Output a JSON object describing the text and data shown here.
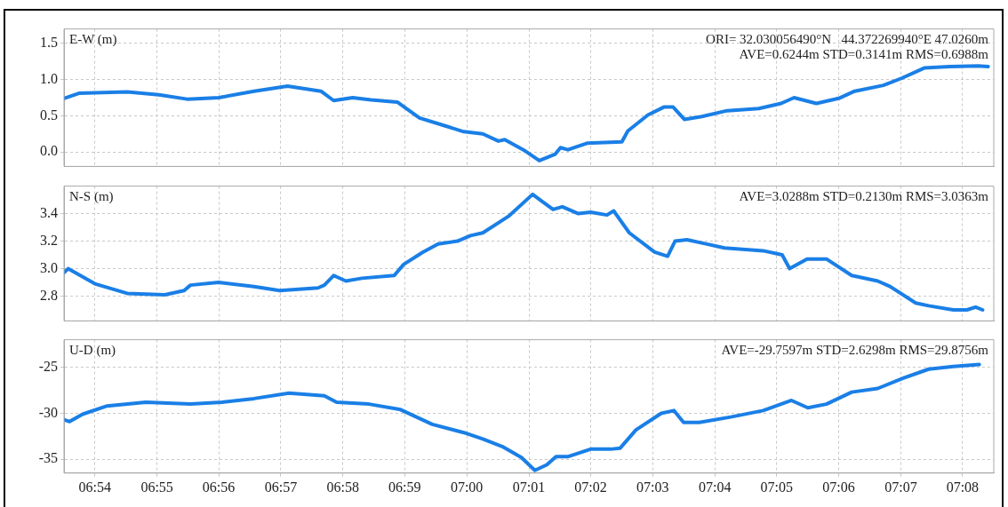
{
  "chart_data": [
    {
      "type": "line",
      "ylabel": "E-W (m)",
      "annotations": [
        "ORI= 32.030056490°N   44.372269940°E 47.0260m",
        "AVE=0.6244m STD=0.3141m RMS=0.6988m"
      ],
      "x": [
        6.8917,
        6.8957,
        6.9087,
        6.9172,
        6.9248,
        6.9333,
        6.9428,
        6.9518,
        6.9608,
        6.9642,
        6.9693,
        6.9743,
        6.9813,
        6.9873,
        6.9942,
        6.9992,
        7.0043,
        7.0085,
        7.0102,
        7.0152,
        7.0195,
        7.0238,
        7.0252,
        7.0272,
        7.0323,
        7.0417,
        7.0433,
        7.0487,
        7.053,
        7.0555,
        7.0585,
        7.0632,
        7.07,
        7.0785,
        7.0845,
        7.088,
        7.094,
        7.1,
        7.1043,
        7.112,
        7.117,
        7.123,
        7.1298,
        7.1375,
        7.1402
      ],
      "series": [
        {
          "color": "#1a7fe6",
          "values": [
            0.74,
            0.81,
            0.83,
            0.79,
            0.73,
            0.75,
            0.84,
            0.91,
            0.84,
            0.71,
            0.75,
            0.72,
            0.69,
            0.47,
            0.36,
            0.28,
            0.25,
            0.15,
            0.17,
            0.03,
            -0.12,
            -0.03,
            0.06,
            0.03,
            0.12,
            0.14,
            0.29,
            0.51,
            0.62,
            0.62,
            0.45,
            0.49,
            0.57,
            0.6,
            0.67,
            0.75,
            0.67,
            0.74,
            0.84,
            0.92,
            1.02,
            1.16,
            1.18,
            1.19,
            1.18
          ]
        }
      ],
      "xlim": [
        6.8917,
        7.1417
      ],
      "ylim": [
        -0.2,
        1.7
      ],
      "yticks": [
        {
          "value": 0,
          "label": "0.0"
        },
        0.5,
        {
          "value": 1,
          "label": "1.0"
        },
        1.5
      ],
      "xticks": [
        {
          "value": 6.9,
          "label": null
        },
        {
          "value": 6.9167,
          "label": null
        },
        {
          "value": 6.9333,
          "label": null
        },
        {
          "value": 6.95,
          "label": null
        },
        {
          "value": 6.9667,
          "label": null
        },
        {
          "value": 6.9833,
          "label": null
        },
        {
          "value": 7.0,
          "label": null
        },
        {
          "value": 7.0167,
          "label": null
        },
        {
          "value": 7.0333,
          "label": null
        },
        {
          "value": 7.05,
          "label": null
        },
        {
          "value": 7.0667,
          "label": null
        },
        {
          "value": 7.0833,
          "label": null
        },
        {
          "value": 7.1,
          "label": null
        },
        {
          "value": 7.1167,
          "label": null
        },
        {
          "value": 7.1333,
          "label": null
        }
      ],
      "tick_labels": "y",
      "grid": true,
      "marker": "none",
      "line_style": "solid"
    },
    {
      "type": "line",
      "ylabel": "N-S (m)",
      "annotations": [
        "AVE=3.0288m STD=0.2130m RMS=3.0363m"
      ],
      "x": [
        6.8917,
        6.8928,
        6.9,
        6.9087,
        6.9188,
        6.924,
        6.9257,
        6.9333,
        6.9428,
        6.9497,
        6.96,
        6.9617,
        6.9642,
        6.9675,
        6.9718,
        6.9805,
        6.983,
        6.9882,
        6.9923,
        6.9975,
        7.001,
        7.0043,
        7.0112,
        7.0177,
        7.0197,
        7.0232,
        7.0257,
        7.03,
        7.0333,
        7.0377,
        7.0395,
        7.0437,
        7.0505,
        7.054,
        7.056,
        7.0592,
        7.0643,
        7.0693,
        7.0797,
        7.0848,
        7.0868,
        7.0915,
        7.0967,
        7.1035,
        7.1105,
        7.1138,
        7.1207,
        7.1242,
        7.1308,
        7.1345,
        7.1368,
        7.1387
      ],
      "series": [
        {
          "color": "#1a7fe6",
          "values": [
            2.97,
            3.0,
            2.89,
            2.82,
            2.81,
            2.84,
            2.88,
            2.9,
            2.87,
            2.84,
            2.86,
            2.88,
            2.95,
            2.91,
            2.93,
            2.95,
            3.03,
            3.12,
            3.18,
            3.2,
            3.24,
            3.26,
            3.38,
            3.54,
            3.5,
            3.43,
            3.45,
            3.4,
            3.41,
            3.39,
            3.42,
            3.26,
            3.12,
            3.09,
            3.2,
            3.21,
            3.18,
            3.15,
            3.13,
            3.1,
            3.0,
            3.07,
            3.07,
            2.95,
            2.91,
            2.87,
            2.75,
            2.73,
            2.7,
            2.7,
            2.72,
            2.7
          ]
        }
      ],
      "xlim": [
        6.8917,
        7.1417
      ],
      "ylim": [
        2.62,
        3.6
      ],
      "yticks": [
        2.8,
        {
          "value": 3,
          "label": "3.0"
        },
        3.2,
        3.4
      ],
      "xticks": [
        {
          "value": 6.9,
          "label": null
        },
        {
          "value": 6.9167,
          "label": null
        },
        {
          "value": 6.9333,
          "label": null
        },
        {
          "value": 6.95,
          "label": null
        },
        {
          "value": 6.9667,
          "label": null
        },
        {
          "value": 6.9833,
          "label": null
        },
        {
          "value": 7.0,
          "label": null
        },
        {
          "value": 7.0167,
          "label": null
        },
        {
          "value": 7.0333,
          "label": null
        },
        {
          "value": 7.05,
          "label": null
        },
        {
          "value": 7.0667,
          "label": null
        },
        {
          "value": 7.0833,
          "label": null
        },
        {
          "value": 7.1,
          "label": null
        },
        {
          "value": 7.1167,
          "label": null
        },
        {
          "value": 7.1333,
          "label": null
        }
      ],
      "tick_labels": "y",
      "grid": true,
      "marker": "none",
      "line_style": "solid"
    },
    {
      "type": "line",
      "ylabel": "U-D (m)",
      "annotations": [
        "AVE=-29.7597m STD=2.6298m RMS=29.8756m"
      ],
      "x": [
        6.8917,
        6.8932,
        6.8967,
        6.9033,
        6.9137,
        6.9257,
        6.9342,
        6.9428,
        6.9522,
        6.9617,
        6.965,
        6.9737,
        6.9822,
        6.9907,
        6.9992,
        7.0043,
        7.0095,
        7.0147,
        7.0183,
        7.0215,
        7.024,
        7.0273,
        7.0333,
        7.0387,
        7.0412,
        7.0455,
        7.0523,
        7.0557,
        7.0583,
        7.0625,
        7.071,
        7.0797,
        7.0873,
        7.0917,
        7.0967,
        7.1035,
        7.1105,
        7.1172,
        7.1242,
        7.1308,
        7.1378
      ],
      "series": [
        {
          "color": "#1a7fe6",
          "values": [
            -30.7,
            -30.9,
            -30.1,
            -29.2,
            -28.8,
            -29.0,
            -28.8,
            -28.4,
            -27.8,
            -28.1,
            -28.8,
            -29.0,
            -29.6,
            -31.2,
            -32.1,
            -32.8,
            -33.6,
            -34.8,
            -36.2,
            -35.6,
            -34.7,
            -34.7,
            -33.9,
            -33.9,
            -33.8,
            -31.8,
            -30.0,
            -29.7,
            -31.0,
            -31.0,
            -30.4,
            -29.7,
            -28.6,
            -29.4,
            -29.0,
            -27.7,
            -27.3,
            -26.2,
            -25.2,
            -24.9,
            -24.7
          ]
        }
      ],
      "xlim": [
        6.8917,
        7.1417
      ],
      "ylim": [
        -36.5,
        -22
      ],
      "yticks": [
        -35,
        -30,
        -25
      ],
      "xticks": [
        {
          "value": 6.9,
          "label": "06:54"
        },
        {
          "value": 6.9167,
          "label": "06:55"
        },
        {
          "value": 6.9333,
          "label": "06:56"
        },
        {
          "value": 6.95,
          "label": "06:57"
        },
        {
          "value": 6.9667,
          "label": "06:58"
        },
        {
          "value": 6.9833,
          "label": "06:59"
        },
        {
          "value": 7.0,
          "label": "07:00"
        },
        {
          "value": 7.0167,
          "label": "07:01"
        },
        {
          "value": 7.0333,
          "label": "07:02"
        },
        {
          "value": 7.05,
          "label": "07:03"
        },
        {
          "value": 7.0667,
          "label": "07:04"
        },
        {
          "value": 7.0833,
          "label": "07:05"
        },
        {
          "value": 7.1,
          "label": "07:06"
        },
        {
          "value": 7.1167,
          "label": "07:07"
        },
        {
          "value": 7.1333,
          "label": "07:08"
        }
      ],
      "grid": true,
      "marker": "none",
      "line_style": "solid"
    }
  ]
}
